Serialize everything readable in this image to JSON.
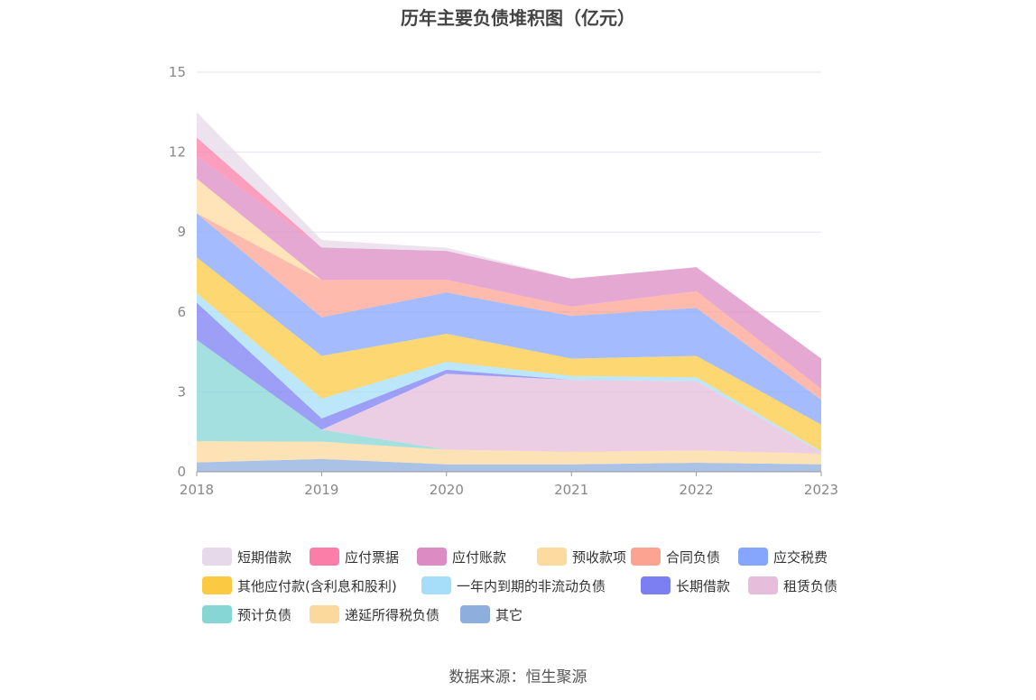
{
  "chart_data": {
    "type": "area",
    "stacked": true,
    "title": "历年主要负债堆积图（亿元）",
    "x": [
      "2018",
      "2019",
      "2020",
      "2021",
      "2022",
      "2023"
    ],
    "ylim": [
      0,
      15
    ],
    "yticks": [
      "0",
      "3",
      "6",
      "9",
      "12",
      "15"
    ],
    "grid": true,
    "legend_position": "bottom",
    "series": [
      {
        "name": "其它",
        "color": "#8eaedd",
        "values": [
          0.35,
          0.48,
          0.28,
          0.28,
          0.34,
          0.28
        ]
      },
      {
        "name": "递延所得税负债",
        "color": "#fbd89b",
        "values": [
          0.8,
          0.65,
          0.55,
          0.47,
          0.46,
          0.4
        ]
      },
      {
        "name": "预计负债",
        "color": "#86d6d6",
        "values": [
          3.8,
          0.45,
          0.0,
          0.0,
          0.0,
          0.0
        ]
      },
      {
        "name": "租赁负债",
        "color": "#e6bedb",
        "values": [
          0.0,
          0.0,
          2.85,
          2.7,
          2.6,
          0.05
        ]
      },
      {
        "name": "长期借款",
        "color": "#7b7ff2",
        "values": [
          1.4,
          0.42,
          0.15,
          0.0,
          0.0,
          0.0
        ]
      },
      {
        "name": "一年内到期的非流动负债",
        "color": "#a6ddf8",
        "values": [
          0.35,
          0.75,
          0.3,
          0.15,
          0.15,
          0.04
        ]
      },
      {
        "name": "其他应付款(含利息和股利)",
        "color": "#fcc942",
        "values": [
          1.35,
          1.6,
          1.05,
          0.65,
          0.8,
          1.0
        ]
      },
      {
        "name": "应交税费",
        "color": "#86a5fc",
        "values": [
          1.65,
          1.45,
          1.55,
          1.6,
          1.8,
          0.93
        ]
      },
      {
        "name": "合同负债",
        "color": "#fca392",
        "values": [
          0.0,
          1.4,
          0.48,
          0.35,
          0.63,
          0.41
        ]
      },
      {
        "name": "预收款项",
        "color": "#fddba0",
        "values": [
          1.3,
          0.0,
          0.0,
          0.0,
          0.0,
          0.0
        ]
      },
      {
        "name": "应付账款",
        "color": "#dc8bc3",
        "values": [
          0.85,
          1.22,
          1.08,
          1.05,
          0.9,
          1.14
        ]
      },
      {
        "name": "应付票据",
        "color": "#fb7ea8",
        "values": [
          0.7,
          0.0,
          0.0,
          0.0,
          0.0,
          0.0
        ]
      },
      {
        "name": "短期借款",
        "color": "#e6d9ea",
        "values": [
          0.95,
          0.28,
          0.12,
          0.0,
          0.0,
          0.0
        ]
      }
    ]
  },
  "legend_order": [
    "短期借款",
    "应付票据",
    "应付账款",
    "预收款项",
    "合同负债",
    "应交税费",
    "其他应付款(含利息和股利)",
    "一年内到期的非流动负债",
    "长期借款",
    "租赁负债",
    "预计负债",
    "递延所得税负债",
    "其它"
  ],
  "source_text": "数据来源：恒生聚源"
}
